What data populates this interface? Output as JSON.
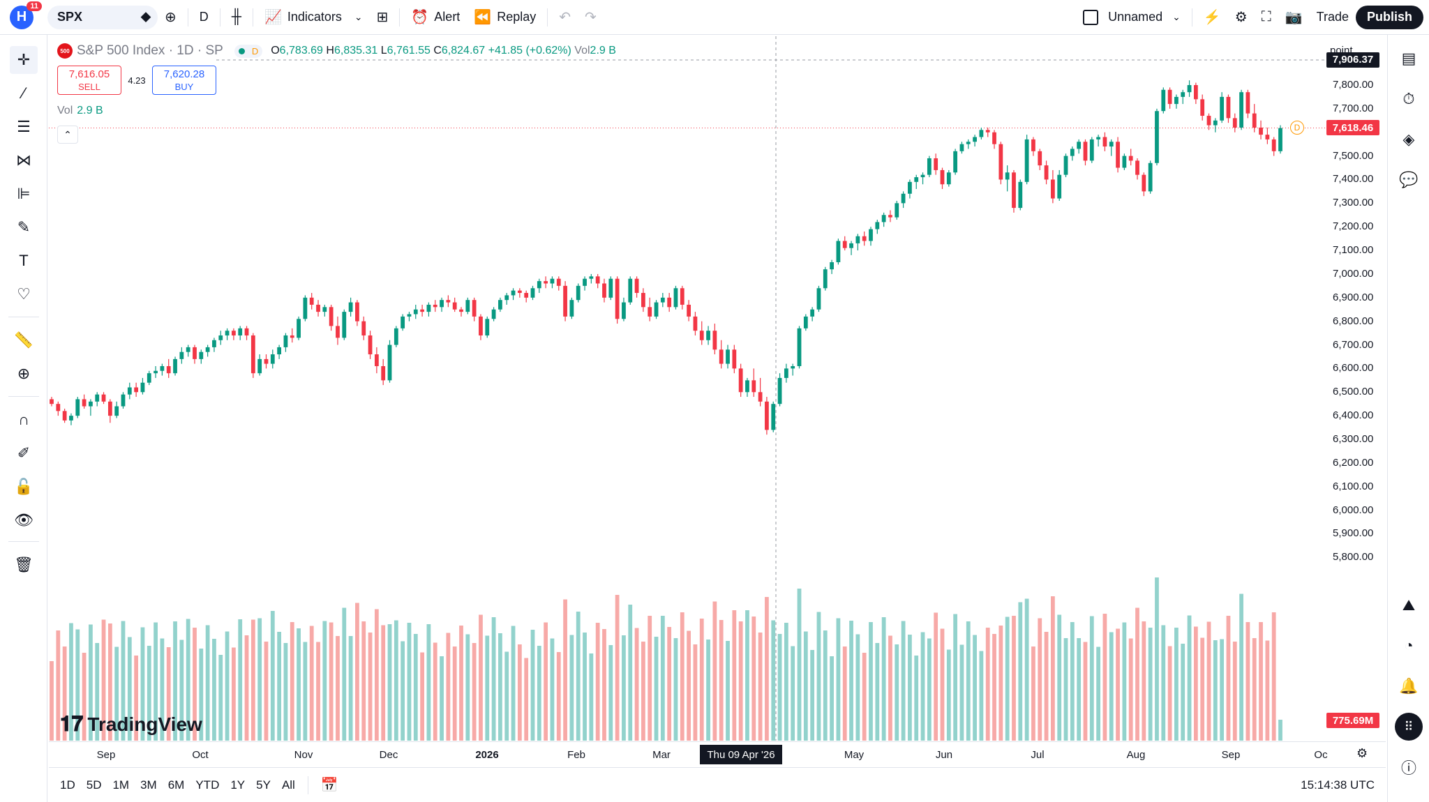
{
  "topbar": {
    "logo_letter": "H",
    "notifications": "11",
    "symbol": "SPX",
    "interval": "D",
    "indicators_label": "Indicators",
    "alert_label": "Alert",
    "replay_label": "Replay",
    "layout_name": "Unnamed",
    "trade_label": "Trade",
    "publish_label": "Publish"
  },
  "legend": {
    "logo_text": "500",
    "title": "S&P 500 Index · 1D · SP",
    "status_letter": "D",
    "open_key": "O",
    "open": "6,783.69",
    "high_key": "H",
    "high": "6,835.31",
    "low_key": "L",
    "low": "6,761.55",
    "close_key": "C",
    "close": "6,824.67",
    "change": "+41.85 (+0.62%)",
    "vol_key": "Vol",
    "vol": "2.9 B"
  },
  "trade_buttons": {
    "sell_price": "7,616.05",
    "sell_label": "SELL",
    "spread": "4.23",
    "buy_price": "7,620.28",
    "buy_label": "BUY"
  },
  "volume_legend": {
    "label": "Vol",
    "value": "2.9 B"
  },
  "price_scale": {
    "unit": "point",
    "labels": [
      "7,800.00",
      "7,700.00",
      "7,500.00",
      "7,400.00",
      "7,300.00",
      "7,200.00",
      "7,100.00",
      "7,000.00",
      "6,900.00",
      "6,800.00",
      "6,700.00",
      "6,600.00",
      "6,500.00",
      "6,400.00",
      "6,300.00",
      "6,200.00",
      "6,100.00",
      "6,000.00",
      "5,900.00",
      "5,800.00"
    ],
    "crosshair_price": "7,906.37",
    "last_price": "7,618.46",
    "last_volume": "775.69M",
    "dividend_marker": "D"
  },
  "time_axis": {
    "labels": [
      "Sep",
      "Oct",
      "Nov",
      "Dec",
      "2026",
      "Feb",
      "Mar",
      "May",
      "Jun",
      "Jul",
      "Aug",
      "Sep",
      "Oc"
    ],
    "crosshair_date": "Thu 09 Apr '26"
  },
  "bottombar": {
    "ranges": [
      "1D",
      "5D",
      "1M",
      "3M",
      "6M",
      "YTD",
      "1Y",
      "5Y",
      "All"
    ],
    "time": "15:14:38 UTC"
  },
  "watermark": "TradingView",
  "colors": {
    "up": "#089981",
    "down": "#f23645",
    "up_vol": "#92d2cc",
    "down_vol": "#f7a9a7",
    "accent": "#2962ff"
  },
  "chart_data": {
    "type": "candlestick",
    "symbol": "SPX",
    "ylim": [
      5800,
      7906
    ],
    "candles": [
      [
        6470,
        6480,
        6440,
        6450
      ],
      [
        6450,
        6460,
        6400,
        6420
      ],
      [
        6420,
        6430,
        6370,
        6380
      ],
      [
        6380,
        6410,
        6360,
        6400
      ],
      [
        6400,
        6480,
        6390,
        6470
      ],
      [
        6470,
        6490,
        6430,
        6440
      ],
      [
        6440,
        6470,
        6400,
        6460
      ],
      [
        6460,
        6500,
        6440,
        6490
      ],
      [
        6490,
        6500,
        6450,
        6460
      ],
      [
        6460,
        6470,
        6370,
        6400
      ],
      [
        6400,
        6460,
        6390,
        6440
      ],
      [
        6440,
        6500,
        6430,
        6490
      ],
      [
        6490,
        6540,
        6470,
        6520
      ],
      [
        6520,
        6540,
        6480,
        6500
      ],
      [
        6500,
        6560,
        6490,
        6540
      ],
      [
        6540,
        6590,
        6530,
        6580
      ],
      [
        6580,
        6610,
        6560,
        6590
      ],
      [
        6590,
        6620,
        6570,
        6610
      ],
      [
        6610,
        6640,
        6560,
        6580
      ],
      [
        6580,
        6650,
        6570,
        6640
      ],
      [
        6640,
        6690,
        6620,
        6670
      ],
      [
        6670,
        6700,
        6650,
        6690
      ],
      [
        6690,
        6700,
        6620,
        6640
      ],
      [
        6640,
        6680,
        6620,
        6670
      ],
      [
        6670,
        6700,
        6650,
        6690
      ],
      [
        6690,
        6730,
        6670,
        6720
      ],
      [
        6720,
        6760,
        6700,
        6740
      ],
      [
        6740,
        6770,
        6720,
        6760
      ],
      [
        6760,
        6770,
        6720,
        6740
      ],
      [
        6740,
        6780,
        6720,
        6770
      ],
      [
        6770,
        6780,
        6720,
        6740
      ],
      [
        6740,
        6750,
        6560,
        6580
      ],
      [
        6580,
        6660,
        6570,
        6640
      ],
      [
        6640,
        6660,
        6600,
        6620
      ],
      [
        6620,
        6680,
        6600,
        6660
      ],
      [
        6660,
        6700,
        6640,
        6690
      ],
      [
        6690,
        6750,
        6670,
        6740
      ],
      [
        6740,
        6770,
        6710,
        6730
      ],
      [
        6730,
        6820,
        6720,
        6810
      ],
      [
        6810,
        6910,
        6800,
        6900
      ],
      [
        6900,
        6920,
        6850,
        6870
      ],
      [
        6870,
        6890,
        6820,
        6840
      ],
      [
        6840,
        6870,
        6820,
        6860
      ],
      [
        6860,
        6870,
        6760,
        6780
      ],
      [
        6780,
        6820,
        6700,
        6730
      ],
      [
        6730,
        6850,
        6720,
        6840
      ],
      [
        6840,
        6900,
        6820,
        6880
      ],
      [
        6880,
        6890,
        6780,
        6800
      ],
      [
        6800,
        6820,
        6720,
        6740
      ],
      [
        6740,
        6760,
        6640,
        6660
      ],
      [
        6660,
        6690,
        6580,
        6610
      ],
      [
        6610,
        6640,
        6530,
        6550
      ],
      [
        6550,
        6720,
        6540,
        6700
      ],
      [
        6700,
        6780,
        6690,
        6770
      ],
      [
        6770,
        6830,
        6760,
        6820
      ],
      [
        6820,
        6840,
        6800,
        6830
      ],
      [
        6830,
        6870,
        6810,
        6850
      ],
      [
        6850,
        6870,
        6820,
        6840
      ],
      [
        6840,
        6880,
        6820,
        6870
      ],
      [
        6870,
        6890,
        6840,
        6860
      ],
      [
        6860,
        6900,
        6840,
        6890
      ],
      [
        6890,
        6910,
        6860,
        6880
      ],
      [
        6880,
        6900,
        6840,
        6850
      ],
      [
        6850,
        6860,
        6820,
        6840
      ],
      [
        6840,
        6900,
        6830,
        6890
      ],
      [
        6890,
        6900,
        6800,
        6820
      ],
      [
        6820,
        6830,
        6720,
        6740
      ],
      [
        6740,
        6820,
        6730,
        6810
      ],
      [
        6810,
        6860,
        6800,
        6850
      ],
      [
        6850,
        6900,
        6840,
        6890
      ],
      [
        6890,
        6920,
        6870,
        6910
      ],
      [
        6910,
        6940,
        6890,
        6930
      ],
      [
        6930,
        6940,
        6900,
        6920
      ],
      [
        6920,
        6930,
        6880,
        6900
      ],
      [
        6900,
        6950,
        6890,
        6940
      ],
      [
        6940,
        6980,
        6920,
        6970
      ],
      [
        6970,
        6990,
        6940,
        6960
      ],
      [
        6960,
        6990,
        6940,
        6980
      ],
      [
        6980,
        6990,
        6930,
        6950
      ],
      [
        6950,
        6970,
        6800,
        6820
      ],
      [
        6820,
        6900,
        6810,
        6890
      ],
      [
        6890,
        6960,
        6880,
        6950
      ],
      [
        6950,
        6990,
        6930,
        6980
      ],
      [
        6980,
        7000,
        6960,
        6990
      ],
      [
        6990,
        7000,
        6940,
        6960
      ],
      [
        6960,
        6980,
        6880,
        6900
      ],
      [
        6900,
        6990,
        6890,
        6980
      ],
      [
        6980,
        6990,
        6790,
        6810
      ],
      [
        6810,
        6900,
        6800,
        6880
      ],
      [
        6880,
        6990,
        6870,
        6980
      ],
      [
        6980,
        6990,
        6900,
        6920
      ],
      [
        6920,
        6940,
        6840,
        6860
      ],
      [
        6860,
        6900,
        6800,
        6820
      ],
      [
        6820,
        6890,
        6810,
        6880
      ],
      [
        6880,
        6920,
        6860,
        6900
      ],
      [
        6900,
        6920,
        6840,
        6860
      ],
      [
        6860,
        6950,
        6850,
        6940
      ],
      [
        6940,
        6950,
        6850,
        6870
      ],
      [
        6870,
        6890,
        6800,
        6820
      ],
      [
        6820,
        6840,
        6740,
        6760
      ],
      [
        6760,
        6800,
        6700,
        6720
      ],
      [
        6720,
        6780,
        6700,
        6760
      ],
      [
        6760,
        6790,
        6660,
        6680
      ],
      [
        6680,
        6720,
        6600,
        6620
      ],
      [
        6620,
        6700,
        6600,
        6680
      ],
      [
        6680,
        6700,
        6580,
        6600
      ],
      [
        6600,
        6620,
        6480,
        6500
      ],
      [
        6500,
        6560,
        6480,
        6550
      ],
      [
        6550,
        6600,
        6480,
        6500
      ],
      [
        6500,
        6560,
        6440,
        6460
      ],
      [
        6460,
        6480,
        6320,
        6340
      ],
      [
        6340,
        6460,
        6330,
        6450
      ],
      [
        6450,
        6580,
        6440,
        6560
      ],
      [
        6560,
        6620,
        6540,
        6600
      ],
      [
        6600,
        6620,
        6570,
        6610
      ],
      [
        6610,
        6780,
        6600,
        6770
      ],
      [
        6770,
        6830,
        6760,
        6820
      ],
      [
        6820,
        6860,
        6800,
        6850
      ],
      [
        6850,
        6950,
        6840,
        6940
      ],
      [
        6940,
        7030,
        6930,
        7020
      ],
      [
        7020,
        7060,
        7000,
        7050
      ],
      [
        7050,
        7150,
        7040,
        7140
      ],
      [
        7140,
        7160,
        7100,
        7110
      ],
      [
        7110,
        7140,
        7080,
        7130
      ],
      [
        7130,
        7170,
        7100,
        7160
      ],
      [
        7160,
        7180,
        7120,
        7140
      ],
      [
        7140,
        7200,
        7120,
        7190
      ],
      [
        7190,
        7230,
        7170,
        7220
      ],
      [
        7220,
        7260,
        7200,
        7250
      ],
      [
        7250,
        7270,
        7220,
        7240
      ],
      [
        7240,
        7310,
        7230,
        7300
      ],
      [
        7300,
        7350,
        7280,
        7340
      ],
      [
        7340,
        7400,
        7320,
        7390
      ],
      [
        7390,
        7420,
        7360,
        7410
      ],
      [
        7410,
        7430,
        7380,
        7420
      ],
      [
        7420,
        7500,
        7410,
        7490
      ],
      [
        7490,
        7510,
        7420,
        7440
      ],
      [
        7440,
        7450,
        7360,
        7380
      ],
      [
        7380,
        7440,
        7370,
        7430
      ],
      [
        7430,
        7530,
        7420,
        7520
      ],
      [
        7520,
        7560,
        7510,
        7550
      ],
      [
        7550,
        7570,
        7530,
        7560
      ],
      [
        7560,
        7590,
        7540,
        7580
      ],
      [
        7580,
        7620,
        7570,
        7610
      ],
      [
        7610,
        7620,
        7580,
        7600
      ],
      [
        7600,
        7610,
        7530,
        7550
      ],
      [
        7550,
        7560,
        7380,
        7400
      ],
      [
        7400,
        7460,
        7350,
        7430
      ],
      [
        7430,
        7440,
        7260,
        7280
      ],
      [
        7280,
        7400,
        7270,
        7390
      ],
      [
        7390,
        7590,
        7380,
        7570
      ],
      [
        7570,
        7580,
        7500,
        7520
      ],
      [
        7520,
        7530,
        7440,
        7460
      ],
      [
        7460,
        7480,
        7380,
        7400
      ],
      [
        7400,
        7440,
        7300,
        7320
      ],
      [
        7320,
        7440,
        7310,
        7420
      ],
      [
        7420,
        7510,
        7410,
        7500
      ],
      [
        7500,
        7540,
        7480,
        7530
      ],
      [
        7530,
        7570,
        7510,
        7560
      ],
      [
        7560,
        7570,
        7460,
        7480
      ],
      [
        7480,
        7580,
        7470,
        7570
      ],
      [
        7570,
        7590,
        7540,
        7580
      ],
      [
        7580,
        7600,
        7520,
        7540
      ],
      [
        7540,
        7570,
        7500,
        7560
      ],
      [
        7560,
        7580,
        7430,
        7450
      ],
      [
        7450,
        7510,
        7440,
        7500
      ],
      [
        7500,
        7530,
        7460,
        7480
      ],
      [
        7480,
        7490,
        7400,
        7420
      ],
      [
        7420,
        7430,
        7330,
        7350
      ],
      [
        7350,
        7480,
        7340,
        7470
      ],
      [
        7470,
        7700,
        7460,
        7690
      ],
      [
        7690,
        7790,
        7680,
        7780
      ],
      [
        7780,
        7790,
        7700,
        7720
      ],
      [
        7720,
        7760,
        7700,
        7750
      ],
      [
        7750,
        7780,
        7720,
        7770
      ],
      [
        7770,
        7820,
        7750,
        7800
      ],
      [
        7800,
        7810,
        7720,
        7740
      ],
      [
        7740,
        7760,
        7650,
        7670
      ],
      [
        7670,
        7680,
        7610,
        7630
      ],
      [
        7630,
        7660,
        7600,
        7650
      ],
      [
        7650,
        7770,
        7640,
        7750
      ],
      [
        7750,
        7760,
        7640,
        7660
      ],
      [
        7660,
        7680,
        7600,
        7620
      ],
      [
        7620,
        7780,
        7610,
        7770
      ],
      [
        7770,
        7780,
        7660,
        7680
      ],
      [
        7680,
        7720,
        7600,
        7620
      ],
      [
        7620,
        7650,
        7570,
        7590
      ],
      [
        7590,
        7620,
        7550,
        7570
      ],
      [
        7570,
        7580,
        7500,
        7520
      ],
      [
        7520,
        7630,
        7510,
        7618
      ]
    ]
  }
}
